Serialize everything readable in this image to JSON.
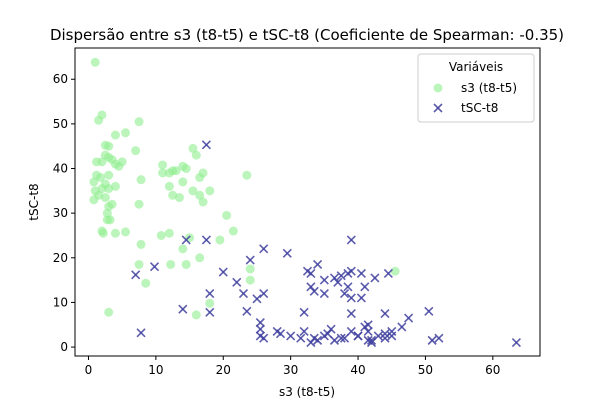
{
  "chart_data": {
    "type": "scatter",
    "title": "Dispersão entre s3 (t8-t5) e tSC-t8 (Coeficiente de Spearman: -0.35)",
    "xlabel": "s3 (t8-t5)",
    "ylabel": "tSC-t8",
    "xlim": [
      -2,
      67
    ],
    "ylim": [
      -2,
      67
    ],
    "xticks": [
      0,
      10,
      20,
      30,
      40,
      50,
      60
    ],
    "yticks": [
      0,
      10,
      20,
      30,
      40,
      50,
      60
    ],
    "grid": false,
    "legend": {
      "title": "Variáveis",
      "position": "top-right"
    },
    "series": [
      {
        "name": "s3 (t8-t5)",
        "marker": "circle",
        "color": "#90ee90",
        "points": [
          [
            1.0,
            63.8
          ],
          [
            1.5,
            50.8
          ],
          [
            2.0,
            52.0
          ],
          [
            2.5,
            45.2
          ],
          [
            3.0,
            45.0
          ],
          [
            4.0,
            47.5
          ],
          [
            5.5,
            48.0
          ],
          [
            7.5,
            50.5
          ],
          [
            1.2,
            41.5
          ],
          [
            2.0,
            41.5
          ],
          [
            2.5,
            43.0
          ],
          [
            3.0,
            42.5
          ],
          [
            3.5,
            42.0
          ],
          [
            4.0,
            41.0
          ],
          [
            4.5,
            40.5
          ],
          [
            5.0,
            41.5
          ],
          [
            7.0,
            44.0
          ],
          [
            0.8,
            37.0
          ],
          [
            1.2,
            38.5
          ],
          [
            1.8,
            38.0
          ],
          [
            2.5,
            36.5
          ],
          [
            3.0,
            38.5
          ],
          [
            4.0,
            36.0
          ],
          [
            1.0,
            35.0
          ],
          [
            1.5,
            34.0
          ],
          [
            2.0,
            35.5
          ],
          [
            3.0,
            35.5
          ],
          [
            0.8,
            33.0
          ],
          [
            2.5,
            33.5
          ],
          [
            3.0,
            31.5
          ],
          [
            3.5,
            32.0
          ],
          [
            7.8,
            37.5
          ],
          [
            7.5,
            32.0
          ],
          [
            2.8,
            30.0
          ],
          [
            3.2,
            28.5
          ],
          [
            2.8,
            28.5
          ],
          [
            2.0,
            26.0
          ],
          [
            2.2,
            25.5
          ],
          [
            4.0,
            25.5
          ],
          [
            5.5,
            25.8
          ],
          [
            3.0,
            7.8
          ],
          [
            7.5,
            18.5
          ],
          [
            7.8,
            23.0
          ],
          [
            8.5,
            14.3
          ],
          [
            11.0,
            40.8
          ],
          [
            11.0,
            39.0
          ],
          [
            12.0,
            39.0
          ],
          [
            12.5,
            39.5
          ],
          [
            13.0,
            39.5
          ],
          [
            14.0,
            40.5
          ],
          [
            14.5,
            40.0
          ],
          [
            15.5,
            44.5
          ],
          [
            16.0,
            43.0
          ],
          [
            16.5,
            38.0
          ],
          [
            17.0,
            39.0
          ],
          [
            18.0,
            35.0
          ],
          [
            12.0,
            36.0
          ],
          [
            12.5,
            34.0
          ],
          [
            13.5,
            33.5
          ],
          [
            14.0,
            37.0
          ],
          [
            15.5,
            35.0
          ],
          [
            16.5,
            34.0
          ],
          [
            17.0,
            32.5
          ],
          [
            20.5,
            29.5
          ],
          [
            21.5,
            26.0
          ],
          [
            23.5,
            38.5
          ],
          [
            10.8,
            25.0
          ],
          [
            12.0,
            25.5
          ],
          [
            14.0,
            22.0
          ],
          [
            15.0,
            24.5
          ],
          [
            16.5,
            20.0
          ],
          [
            19.5,
            24.0
          ],
          [
            12.2,
            18.5
          ],
          [
            14.5,
            18.5
          ],
          [
            18.0,
            9.8
          ],
          [
            16.0,
            7.2
          ],
          [
            24.0,
            17.5
          ],
          [
            24.0,
            15.0
          ],
          [
            45.5,
            17.0
          ]
        ]
      },
      {
        "name": "tSC-t8",
        "marker": "x",
        "color": "#3f3f9f",
        "points": [
          [
            17.5,
            45.3
          ],
          [
            7.8,
            3.2
          ],
          [
            7.0,
            16.2
          ],
          [
            9.8,
            18.0
          ],
          [
            14.5,
            24.0
          ],
          [
            17.5,
            24.0
          ],
          [
            18.0,
            12.0
          ],
          [
            18.0,
            7.8
          ],
          [
            14.0,
            8.5
          ],
          [
            20.0,
            16.8
          ],
          [
            22.0,
            14.5
          ],
          [
            23.0,
            12.0
          ],
          [
            23.5,
            8.0
          ],
          [
            24.0,
            19.5
          ],
          [
            25.0,
            10.8
          ],
          [
            26.0,
            22.0
          ],
          [
            26.0,
            12.0
          ],
          [
            25.5,
            5.5
          ],
          [
            25.5,
            4.0
          ],
          [
            25.5,
            2.5
          ],
          [
            26.0,
            2.0
          ],
          [
            28.0,
            3.5
          ],
          [
            28.5,
            3.0
          ],
          [
            29.5,
            21.0
          ],
          [
            30.0,
            2.5
          ],
          [
            31.5,
            2.0
          ],
          [
            32.0,
            3.5
          ],
          [
            32.0,
            7.8
          ],
          [
            32.5,
            17.0
          ],
          [
            33.0,
            13.5
          ],
          [
            33.5,
            12.5
          ],
          [
            33.0,
            16.5
          ],
          [
            34.0,
            18.5
          ],
          [
            35.0,
            15.0
          ],
          [
            35.0,
            12.0
          ],
          [
            35.0,
            2.5
          ],
          [
            35.5,
            3.0
          ],
          [
            36.0,
            4.0
          ],
          [
            36.5,
            15.5
          ],
          [
            37.0,
            14.5
          ],
          [
            37.5,
            16.0
          ],
          [
            38.0,
            12.0
          ],
          [
            38.5,
            16.5
          ],
          [
            38.5,
            13.5
          ],
          [
            39.0,
            24.0
          ],
          [
            39.0,
            17.0
          ],
          [
            39.0,
            11.0
          ],
          [
            39.0,
            7.5
          ],
          [
            39.0,
            3.5
          ],
          [
            40.0,
            2.5
          ],
          [
            40.5,
            16.5
          ],
          [
            40.5,
            11.0
          ],
          [
            41.0,
            13.5
          ],
          [
            41.0,
            4.5
          ],
          [
            41.5,
            5.0
          ],
          [
            41.5,
            3.5
          ],
          [
            42.0,
            1.5
          ],
          [
            42.5,
            15.5
          ],
          [
            42.0,
            1.0
          ],
          [
            44.0,
            7.5
          ],
          [
            44.0,
            2.0
          ],
          [
            44.5,
            16.5
          ],
          [
            45.0,
            3.5
          ],
          [
            46.5,
            4.5
          ],
          [
            47.5,
            6.5
          ],
          [
            50.5,
            8.0
          ],
          [
            51.0,
            1.5
          ],
          [
            52.0,
            2.0
          ],
          [
            63.5,
            1.0
          ],
          [
            33.0,
            1.0
          ],
          [
            33.5,
            2.0
          ],
          [
            34.0,
            1.5
          ],
          [
            36.5,
            1.5
          ],
          [
            37.5,
            2.0
          ],
          [
            38.0,
            2.0
          ],
          [
            40.0,
            2.5
          ],
          [
            41.5,
            1.5
          ],
          [
            43.0,
            2.5
          ],
          [
            44.0,
            3.0
          ],
          [
            45.0,
            2.5
          ]
        ]
      }
    ]
  }
}
